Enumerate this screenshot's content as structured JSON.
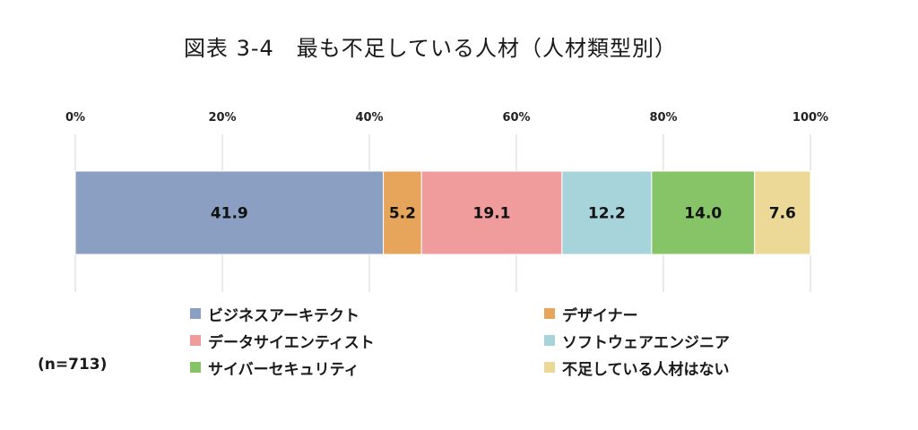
{
  "chart_data": {
    "type": "bar",
    "orientation": "horizontal-stacked-100",
    "title": "図表 3-4　最も不足している人材（人材類型別）",
    "x_ticks": [
      "0%",
      "20%",
      "40%",
      "60%",
      "80%",
      "100%"
    ],
    "xlim": [
      0,
      100
    ],
    "series": [
      {
        "name": "ビジネスアーキテクト",
        "value": 41.9,
        "label": "41.9",
        "color": "#8a9fc2"
      },
      {
        "name": "デザイナー",
        "value": 5.2,
        "label": "5.2",
        "color": "#e6a55b"
      },
      {
        "name": "データサイエンティスト",
        "value": 19.1,
        "label": "19.1",
        "color": "#f09c9c"
      },
      {
        "name": "ソフトウェアエンジニア",
        "value": 12.2,
        "label": "12.2",
        "color": "#a7d4db"
      },
      {
        "name": "サイバーセキュリティ",
        "value": 14.0,
        "label": "14.0",
        "color": "#86c467"
      },
      {
        "name": "不足している人材はない",
        "value": 7.6,
        "label": "7.6",
        "color": "#ecd998"
      }
    ],
    "legend_order": [
      0,
      1,
      2,
      3,
      4,
      5
    ],
    "n_label": "(n=713)",
    "grid": true
  }
}
